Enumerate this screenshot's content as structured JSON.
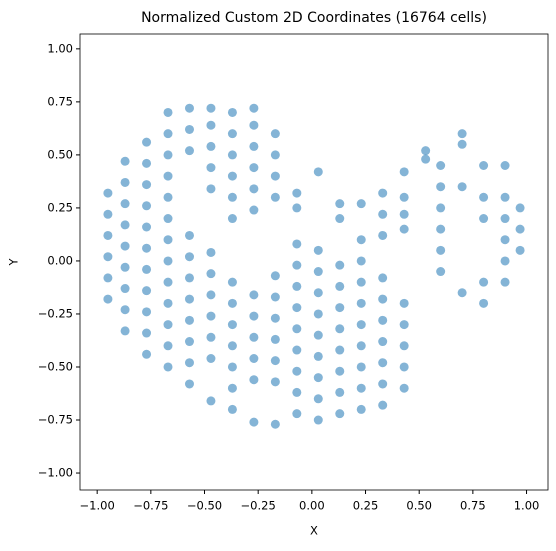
{
  "chart_data": {
    "type": "scatter",
    "title": "Normalized Custom 2D Coordinates (16764 cells)",
    "x_label": "X",
    "y_label": "Y",
    "color": "#1f77b4",
    "xlim": [
      -1.08,
      1.1
    ],
    "ylim": [
      -1.08,
      1.07
    ],
    "xticks": [
      {
        "value": -1,
        "label": "−1.00"
      },
      {
        "value": -0.75,
        "label": "−0.75"
      },
      {
        "value": -0.5,
        "label": "−0.50"
      },
      {
        "value": -0.25,
        "label": "−0.25"
      },
      {
        "value": 0,
        "label": "0.00"
      },
      {
        "value": 0.25,
        "label": "0.25"
      },
      {
        "value": 0.5,
        "label": "0.50"
      },
      {
        "value": 0.75,
        "label": "0.75"
      },
      {
        "value": 1,
        "label": "1.00"
      }
    ],
    "yticks": [
      {
        "value": -1,
        "label": "−1.00"
      },
      {
        "value": -0.75,
        "label": "−0.75"
      },
      {
        "value": -0.5,
        "label": "−0.50"
      },
      {
        "value": -0.25,
        "label": "−0.25"
      },
      {
        "value": 0,
        "label": "0.00"
      },
      {
        "value": 0.25,
        "label": "0.25"
      },
      {
        "value": 0.5,
        "label": "0.50"
      },
      {
        "value": 0.75,
        "label": "0.75"
      },
      {
        "value": 1,
        "label": "1.00"
      }
    ],
    "x": [
      -0.95,
      -0.95,
      -0.95,
      -0.95,
      -0.95,
      -0.95,
      -0.87,
      -0.87,
      -0.87,
      -0.87,
      -0.87,
      -0.87,
      -0.87,
      -0.87,
      -0.87,
      -0.77,
      -0.77,
      -0.77,
      -0.77,
      -0.77,
      -0.77,
      -0.77,
      -0.77,
      -0.77,
      -0.77,
      -0.77,
      -0.67,
      -0.67,
      -0.67,
      -0.67,
      -0.67,
      -0.67,
      -0.67,
      -0.67,
      -0.67,
      -0.67,
      -0.67,
      -0.67,
      -0.67,
      -0.57,
      -0.57,
      -0.57,
      -0.57,
      -0.57,
      -0.57,
      -0.57,
      -0.57,
      -0.57,
      -0.57,
      -0.57,
      -0.47,
      -0.47,
      -0.47,
      -0.47,
      -0.47,
      -0.47,
      -0.47,
      -0.47,
      -0.47,
      -0.47,
      -0.47,
      -0.47,
      -0.37,
      -0.37,
      -0.37,
      -0.37,
      -0.37,
      -0.37,
      -0.37,
      -0.37,
      -0.37,
      -0.37,
      -0.37,
      -0.37,
      -0.37,
      -0.27,
      -0.27,
      -0.27,
      -0.27,
      -0.27,
      -0.27,
      -0.27,
      -0.27,
      -0.27,
      -0.27,
      -0.27,
      -0.27,
      -0.17,
      -0.17,
      -0.17,
      -0.17,
      -0.17,
      -0.17,
      -0.17,
      -0.17,
      -0.17,
      -0.17,
      -0.17,
      -0.07,
      -0.07,
      -0.07,
      -0.07,
      -0.07,
      -0.07,
      -0.07,
      -0.07,
      -0.07,
      -0.07,
      -0.07,
      0.03,
      0.03,
      0.03,
      0.03,
      0.03,
      0.03,
      0.03,
      0.03,
      0.03,
      0.03,
      0.13,
      0.13,
      0.13,
      0.13,
      0.13,
      0.13,
      0.13,
      0.13,
      0.13,
      0.13,
      0.23,
      0.23,
      0.23,
      0.23,
      0.23,
      0.23,
      0.23,
      0.23,
      0.23,
      0.23,
      0.33,
      0.33,
      0.33,
      0.33,
      0.33,
      0.33,
      0.33,
      0.33,
      0.33,
      0.33,
      0.43,
      0.43,
      0.43,
      0.43,
      0.43,
      0.43,
      0.43,
      0.43,
      0.43,
      0.53,
      0.53,
      0.6,
      0.6,
      0.6,
      0.6,
      0.6,
      0.6,
      0.7,
      0.7,
      0.7,
      0.7,
      0.8,
      0.8,
      0.8,
      0.8,
      0.8,
      0.9,
      0.9,
      0.9,
      0.9,
      0.9,
      0.9,
      0.97,
      0.97,
      0.97
    ],
    "y": [
      -0.18,
      -0.08,
      0.02,
      0.12,
      0.22,
      0.32,
      -0.33,
      -0.23,
      -0.13,
      -0.03,
      0.07,
      0.17,
      0.27,
      0.37,
      0.47,
      -0.44,
      -0.34,
      -0.24,
      -0.14,
      -0.04,
      0.06,
      0.16,
      0.26,
      0.36,
      0.46,
      0.56,
      -0.5,
      -0.4,
      -0.3,
      -0.2,
      -0.1,
      0,
      0.1,
      0.2,
      0.3,
      0.4,
      0.5,
      0.6,
      0.7,
      -0.58,
      -0.48,
      -0.38,
      -0.28,
      -0.18,
      -0.08,
      0.02,
      0.12,
      0.52,
      0.62,
      0.72,
      -0.66,
      -0.46,
      -0.36,
      -0.26,
      -0.16,
      -0.06,
      0.04,
      0.34,
      0.44,
      0.54,
      0.64,
      0.72,
      -0.7,
      -0.6,
      -0.5,
      -0.4,
      -0.3,
      -0.2,
      -0.1,
      0.2,
      0.3,
      0.4,
      0.5,
      0.6,
      0.7,
      -0.76,
      -0.56,
      -0.46,
      -0.36,
      -0.26,
      -0.16,
      0.24,
      0.34,
      0.44,
      0.54,
      0.64,
      0.72,
      -0.77,
      -0.57,
      -0.47,
      -0.37,
      -0.27,
      -0.17,
      -0.07,
      0.3,
      0.4,
      0.5,
      0.6,
      -0.72,
      -0.62,
      -0.52,
      -0.42,
      -0.32,
      -0.22,
      -0.12,
      -0.02,
      0.08,
      0.25,
      0.32,
      -0.75,
      -0.65,
      -0.55,
      -0.45,
      -0.35,
      -0.25,
      -0.15,
      -0.05,
      0.05,
      0.42,
      -0.72,
      -0.62,
      -0.52,
      -0.42,
      -0.32,
      -0.22,
      -0.12,
      -0.02,
      0.2,
      0.27,
      -0.7,
      -0.6,
      -0.5,
      -0.4,
      -0.3,
      -0.2,
      -0.1,
      0,
      0.1,
      0.27,
      -0.68,
      -0.58,
      -0.48,
      -0.38,
      -0.28,
      -0.18,
      -0.08,
      0.12,
      0.22,
      0.32,
      -0.6,
      -0.5,
      -0.4,
      -0.3,
      -0.2,
      0.15,
      0.22,
      0.3,
      0.42,
      0.48,
      0.52,
      -0.05,
      0.05,
      0.15,
      0.25,
      0.35,
      0.45,
      -0.15,
      0.35,
      0.55,
      0.6,
      -0.2,
      -0.1,
      0.2,
      0.3,
      0.45,
      -0.1,
      0,
      0.1,
      0.2,
      0.3,
      0.45,
      0.05,
      0.15,
      0.25
    ]
  }
}
